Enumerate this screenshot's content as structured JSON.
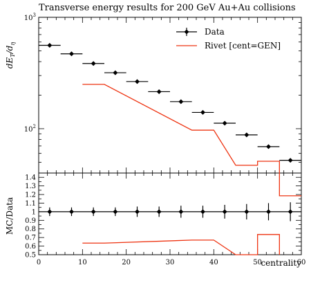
{
  "chart_data": {
    "title": "Transverse energy results for 200 GeV Au+Au collisions",
    "xlabel": "centrality",
    "main": {
      "type": "scatter",
      "yscale": "log",
      "xlim": [
        0,
        60
      ],
      "ylim": [
        40,
        1000
      ],
      "ylabel_main": "dE",
      "ylabel_sub1": "T",
      "ylabel_mid": "/d",
      "ylabel_sub2": "η",
      "yticks": [
        {
          "value": 100,
          "base": "10",
          "exp": "2"
        },
        {
          "value": 1000,
          "base": "10",
          "exp": "3"
        }
      ],
      "data": {
        "name": "Data",
        "color": "#000000",
        "points": [
          {
            "x": 2.5,
            "y": 560,
            "xerr": 2.5
          },
          {
            "x": 7.5,
            "y": 470,
            "xerr": 2.5
          },
          {
            "x": 12.5,
            "y": 385,
            "xerr": 2.5
          },
          {
            "x": 17.5,
            "y": 318,
            "xerr": 2.5
          },
          {
            "x": 22.5,
            "y": 265,
            "xerr": 2.5
          },
          {
            "x": 27.5,
            "y": 215,
            "xerr": 2.5
          },
          {
            "x": 32.5,
            "y": 175,
            "xerr": 2.5
          },
          {
            "x": 37.5,
            "y": 140,
            "xerr": 2.5
          },
          {
            "x": 42.5,
            "y": 112,
            "xerr": 2.5
          },
          {
            "x": 47.5,
            "y": 88,
            "xerr": 2.5
          },
          {
            "x": 52.5,
            "y": 69,
            "xerr": 2.5
          },
          {
            "x": 57.5,
            "y": 52,
            "xerr": 2.5
          }
        ]
      },
      "mc": {
        "name": "Rivet [cent=GEN]",
        "color": "#ee3311",
        "path": [
          [
            10,
            250
          ],
          [
            15,
            250
          ],
          [
            35,
            97
          ],
          [
            40,
            97
          ],
          [
            45,
            47
          ],
          [
            50,
            47
          ],
          [
            50,
            51
          ],
          [
            55,
            51
          ],
          [
            55,
            25
          ],
          [
            60,
            25
          ]
        ]
      },
      "legend_position": "top-right"
    },
    "ratio": {
      "ylabel": "MC/Data",
      "ylim": [
        0.5,
        1.45
      ],
      "yticks": [
        "0.5",
        "0.6",
        "0.7",
        "0.8",
        "0.9",
        "1",
        "1.1",
        "1.2",
        "1.3",
        "1.4"
      ],
      "xticks": [
        "0",
        "10",
        "20",
        "30",
        "40",
        "50",
        "60"
      ],
      "data_points": [
        {
          "x": 2.5,
          "y": 1.0,
          "yerr": 0.05
        },
        {
          "x": 7.5,
          "y": 1.0,
          "yerr": 0.05
        },
        {
          "x": 12.5,
          "y": 1.0,
          "yerr": 0.05
        },
        {
          "x": 17.5,
          "y": 1.0,
          "yerr": 0.05
        },
        {
          "x": 22.5,
          "y": 1.0,
          "yerr": 0.06
        },
        {
          "x": 27.5,
          "y": 1.0,
          "yerr": 0.06
        },
        {
          "x": 32.5,
          "y": 1.0,
          "yerr": 0.07
        },
        {
          "x": 37.5,
          "y": 1.0,
          "yerr": 0.07
        },
        {
          "x": 42.5,
          "y": 1.0,
          "yerr": 0.08
        },
        {
          "x": 47.5,
          "y": 1.0,
          "yerr": 0.09
        },
        {
          "x": 52.5,
          "y": 1.0,
          "yerr": 0.1
        },
        {
          "x": 57.5,
          "y": 1.0,
          "yerr": 0.11
        }
      ],
      "mc_path": [
        [
          10,
          0.635
        ],
        [
          15,
          0.635
        ],
        [
          35,
          0.67
        ],
        [
          40,
          0.67
        ],
        [
          45,
          0.5
        ],
        [
          50,
          0.5
        ],
        [
          50,
          0.735
        ],
        [
          55,
          0.735
        ],
        [
          55,
          0.5
        ]
      ]
    }
  }
}
